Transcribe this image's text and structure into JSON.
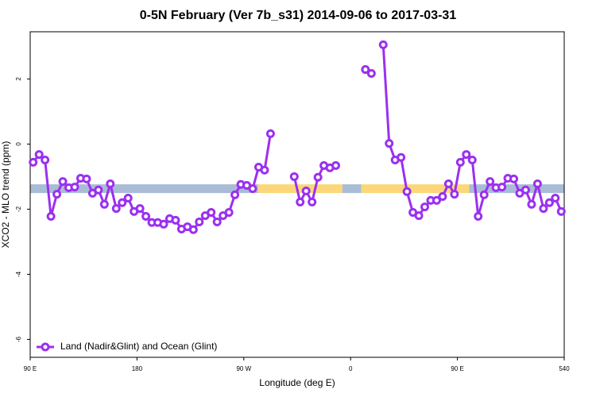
{
  "chart_data": {
    "type": "line",
    "title": "0-5N February (Ver 7b_s31)   2014-09-06 to 2017-03-31",
    "x_label": "Longitude (deg E)",
    "y_label": "XCO2 - MLO trend (ppm)",
    "x": [
      92.5,
      97.5,
      102.5,
      107.5,
      112.5,
      117.5,
      122.5,
      127.5,
      132.5,
      137.5,
      142.5,
      147.5,
      152.5,
      157.5,
      162.5,
      167.5,
      172.5,
      177.5,
      182.5,
      187.5,
      192.5,
      197.5,
      202.5,
      207.5,
      212.5,
      217.5,
      222.5,
      227.5,
      232.5,
      237.5,
      242.5,
      247.5,
      252.5,
      257.5,
      262.5,
      267.5,
      272.5,
      277.5,
      282.5,
      287.5,
      292.5,
      297.5,
      302.5,
      307.5,
      312.5,
      317.5,
      322.5,
      327.5,
      332.5,
      337.5,
      342.5,
      347.5,
      352.5,
      357.5,
      362.5,
      367.5,
      372.5,
      377.5,
      382.5,
      387.5,
      392.5,
      397.5,
      402.5,
      407.5,
      412.5,
      417.5,
      422.5,
      427.5,
      432.5,
      437.5,
      442.5,
      447.5,
      452.5,
      457.5,
      462.5,
      467.5,
      472.5,
      477.5,
      482.5,
      487.5,
      492.5,
      497.5,
      502.5,
      507.5,
      512.5,
      517.5,
      522.5,
      527.5,
      532.5,
      537.5
    ],
    "series": [
      {
        "name": "Land (Nadir&Glint) and Ocean (Glint)",
        "color": "#9b30f0",
        "values": [
          -0.56,
          -0.32,
          -0.49,
          -2.22,
          -1.54,
          -1.15,
          -1.34,
          -1.32,
          -1.05,
          -1.07,
          -1.51,
          -1.41,
          -1.85,
          -1.22,
          -1.98,
          -1.8,
          -1.66,
          -2.07,
          -1.98,
          -2.22,
          -2.41,
          -2.41,
          -2.46,
          -2.29,
          -2.34,
          -2.61,
          -2.54,
          -2.63,
          -2.39,
          -2.2,
          -2.1,
          -2.39,
          -2.2,
          -2.1,
          -1.56,
          -1.24,
          -1.27,
          -1.37,
          -0.71,
          -0.8,
          0.32,
          null,
          null,
          null,
          -1.0,
          -1.78,
          -1.44,
          -1.78,
          -1.02,
          -0.66,
          -0.73,
          -0.66,
          null,
          null,
          null,
          null,
          2.29,
          2.17,
          null,
          3.05,
          0.02,
          -0.49,
          -0.41,
          -1.46,
          -2.1,
          -2.2,
          -1.93,
          -1.73,
          -1.73,
          -1.61,
          -1.22,
          -1.54,
          -0.56,
          -0.32,
          -0.49,
          -2.22,
          -1.56,
          -1.15,
          -1.34,
          -1.32,
          -1.05,
          -1.07,
          -1.51,
          -1.41,
          -1.85,
          -1.22,
          -1.98,
          -1.8,
          -1.66,
          -2.07
        ]
      }
    ],
    "band": {
      "y": -1.37,
      "segments": [
        {
          "x": [
            90,
            282
          ],
          "color": "#a9bcd6"
        },
        {
          "x": [
            282,
            353
          ],
          "color": "#fbd77a"
        },
        {
          "x": [
            353,
            369
          ],
          "color": "#a9bcd6"
        },
        {
          "x": [
            369,
            460
          ],
          "color": "#fbd77a"
        },
        {
          "x": [
            460,
            540
          ],
          "color": "#a9bcd6"
        }
      ]
    },
    "xlim": [
      90,
      540
    ],
    "xticks": [
      {
        "value": 90,
        "label": "90 E"
      },
      180,
      {
        "value": 270,
        "label": "90 W"
      },
      {
        "value": 360,
        "label": "0"
      },
      {
        "value": 450,
        "label": "90 E"
      },
      540
    ],
    "ylim": [
      -6.55,
      3.45
    ],
    "yticks": [
      2,
      0,
      -2,
      -4,
      -6
    ],
    "legend": "bottom-left"
  }
}
